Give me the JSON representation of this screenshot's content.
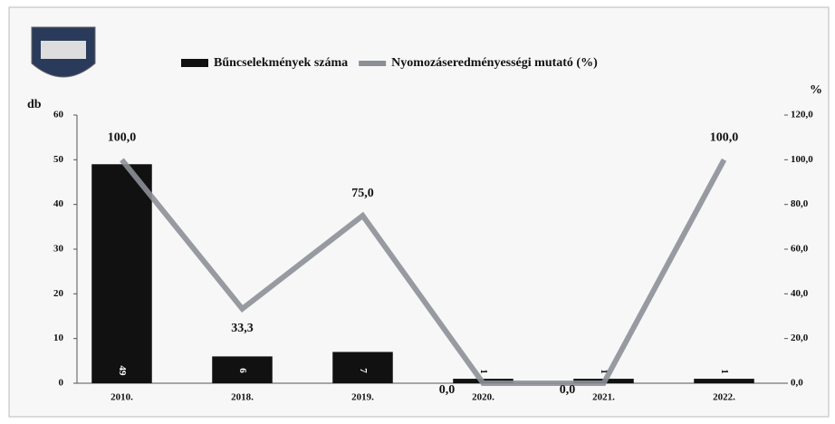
{
  "chart_data": {
    "type": "combo",
    "categories": [
      "2010.",
      "2018.",
      "2019.",
      "2020.",
      "2021.",
      "2022."
    ],
    "y_label": "db",
    "y2_label": "%",
    "ylim": [
      0,
      60
    ],
    "yticks": [
      0,
      10,
      20,
      30,
      40,
      50,
      60
    ],
    "y2lim": [
      0,
      120
    ],
    "y2ticks": [
      {
        "value": 0,
        "label": "0,0"
      },
      {
        "value": 20,
        "label": "20,0"
      },
      {
        "value": 40,
        "label": "40,0"
      },
      {
        "value": 60,
        "label": "60,0"
      },
      {
        "value": 80,
        "label": "80,0"
      },
      {
        "value": 100,
        "label": "100,0"
      },
      {
        "value": 120,
        "label": "120,0"
      }
    ],
    "series": [
      {
        "name": "Bűncselekmények száma",
        "type": "bar",
        "color": "#111111",
        "values": [
          49,
          6,
          7,
          1,
          1,
          1
        ]
      },
      {
        "name": "Nyomozáseredményességi mutató (%)",
        "type": "line",
        "axis": "y2",
        "color": "#8c8f96",
        "values": [
          100,
          33.3,
          75,
          0,
          0,
          100
        ],
        "value_labels": [
          "100,0",
          "33,3",
          "75,0",
          "0,0",
          "0,0",
          "100,0"
        ]
      }
    ]
  }
}
